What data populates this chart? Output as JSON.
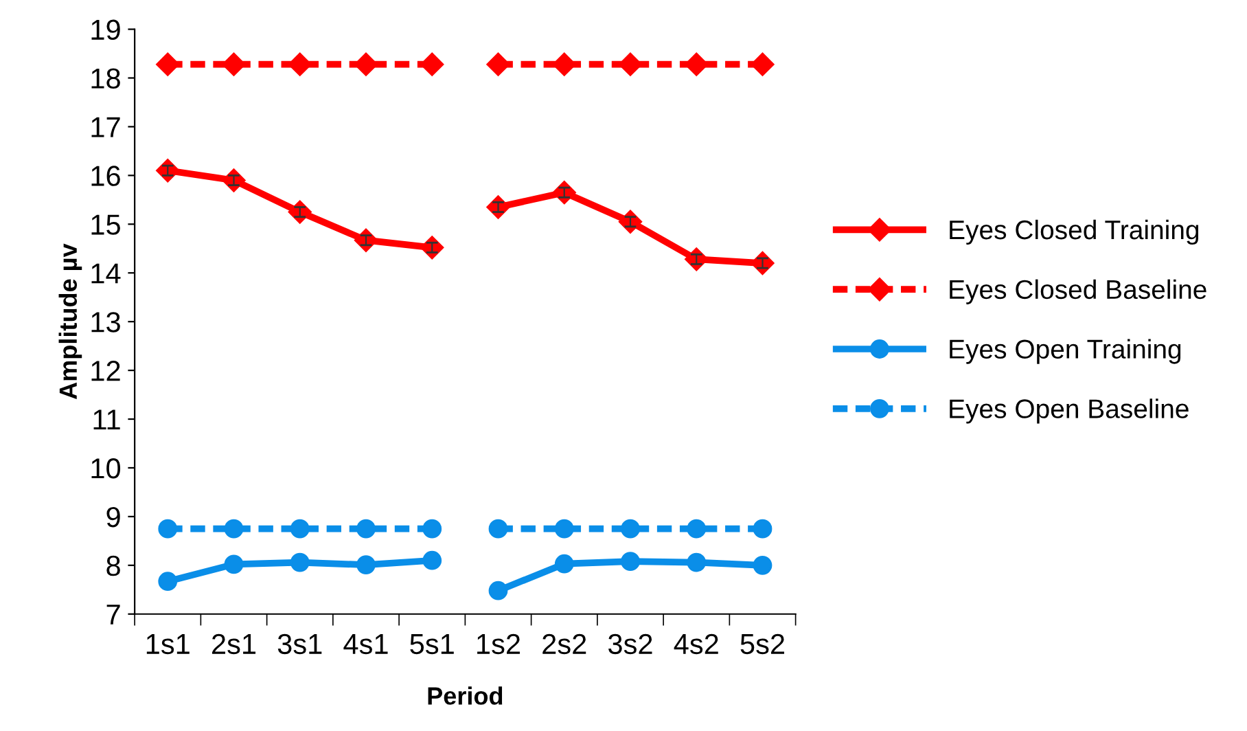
{
  "chart_data": {
    "type": "line",
    "xlabel": "Period",
    "ylabel": "Amplitude µv",
    "categories": [
      "1s1",
      "2s1",
      "3s1",
      "4s1",
      "5s1",
      "1s2",
      "2s2",
      "3s2",
      "4s2",
      "5s2"
    ],
    "ylim": [
      7,
      19
    ],
    "yticks": [
      7,
      8,
      9,
      10,
      11,
      12,
      13,
      14,
      15,
      16,
      17,
      18,
      19
    ],
    "grid": false,
    "legend": "right",
    "series": [
      {
        "name": "Eyes Closed Training",
        "color": "#ff0000",
        "marker": "diamond",
        "line_style": "solid",
        "values": [
          16.1,
          15.9,
          15.25,
          14.67,
          14.52,
          null,
          null,
          null,
          null,
          null
        ],
        "errors": [
          0.1,
          0.1,
          0.1,
          0.1,
          0.1,
          null,
          null,
          null,
          null,
          null
        ]
      },
      {
        "color": "#ff0000",
        "marker": "diamond",
        "line_style": "solid",
        "values": [
          null,
          null,
          null,
          null,
          null,
          15.35,
          15.65,
          15.05,
          14.28,
          14.2
        ],
        "errors": [
          null,
          null,
          null,
          null,
          null,
          0.1,
          0.1,
          0.1,
          0.1,
          0.1
        ]
      },
      {
        "name": "Eyes Closed Baseline",
        "color": "#ff0000",
        "marker": "diamond",
        "line_style": "dashed",
        "values": [
          18.28,
          18.28,
          18.28,
          18.28,
          18.28,
          null,
          null,
          null,
          null,
          null
        ]
      },
      {
        "color": "#ff0000",
        "marker": "diamond",
        "line_style": "dashed",
        "values": [
          null,
          null,
          null,
          null,
          null,
          18.28,
          18.28,
          18.28,
          18.28,
          18.28
        ]
      },
      {
        "name": "Eyes Open Training",
        "color": "#0a8ee8",
        "marker": "circle",
        "line_style": "solid",
        "values": [
          7.67,
          8.02,
          8.06,
          8.01,
          8.1,
          null,
          null,
          null,
          null,
          null
        ]
      },
      {
        "color": "#0a8ee8",
        "marker": "circle",
        "line_style": "solid",
        "values": [
          null,
          null,
          null,
          null,
          null,
          7.48,
          8.03,
          8.08,
          8.06,
          8.0
        ]
      },
      {
        "name": "Eyes Open Baseline",
        "color": "#0a8ee8",
        "marker": "circle",
        "line_style": "dashed",
        "values": [
          8.75,
          8.75,
          8.75,
          8.75,
          8.75,
          null,
          null,
          null,
          null,
          null
        ]
      },
      {
        "color": "#0a8ee8",
        "marker": "circle",
        "line_style": "dashed",
        "values": [
          null,
          null,
          null,
          null,
          null,
          8.75,
          8.75,
          8.75,
          8.75,
          8.75
        ]
      }
    ]
  }
}
